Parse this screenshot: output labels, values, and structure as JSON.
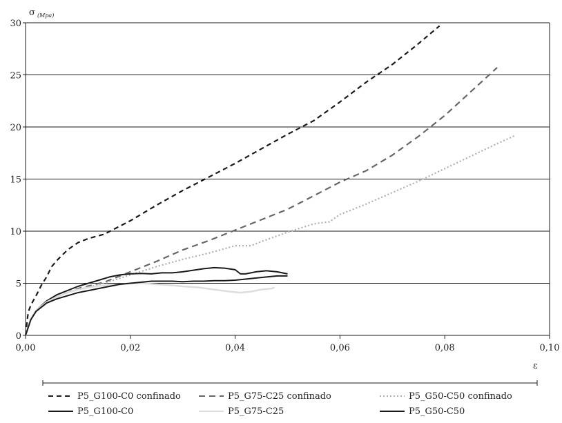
{
  "chart_data": {
    "type": "line",
    "ylabel": "σ",
    "ylabel_unit": "(Mpa)",
    "xlabel": "ε",
    "xlim": [
      0,
      0.1
    ],
    "ylim": [
      0,
      30
    ],
    "x_tick_labels": [
      "0,00",
      "0,02",
      "0,04",
      "0,06",
      "0,08",
      "0,10"
    ],
    "x_ticks": [
      0,
      0.02,
      0.04,
      0.06,
      0.08,
      0.1
    ],
    "y_ticks": [
      0,
      5,
      10,
      15,
      20,
      25,
      30
    ],
    "y_tick_labels": [
      "0",
      "5",
      "10",
      "15",
      "20",
      "25",
      "30"
    ],
    "grid": "horizontal",
    "legend_position": "bottom",
    "series": [
      {
        "name": "P5_G100-C0 confinado",
        "color": "#1a1a1a",
        "dash": "dashed",
        "x": [
          0,
          0.0005,
          0.001,
          0.002,
          0.003,
          0.004,
          0.005,
          0.006,
          0.008,
          0.01,
          0.012,
          0.015,
          0.02,
          0.025,
          0.03,
          0.035,
          0.04,
          0.045,
          0.05,
          0.055,
          0.06,
          0.065,
          0.07,
          0.075,
          0.079
        ],
        "y": [
          0,
          2.2,
          2.9,
          3.8,
          4.8,
          5.6,
          6.6,
          7.2,
          8.2,
          8.9,
          9.3,
          9.7,
          11,
          12.5,
          13.9,
          15.2,
          16.5,
          17.9,
          19.3,
          20.6,
          22.4,
          24.3,
          26,
          28,
          29.7
        ]
      },
      {
        "name": "P5_G75-C25 confinado",
        "color": "#666666",
        "dash": "dashed",
        "x": [
          0,
          0.001,
          0.002,
          0.004,
          0.006,
          0.008,
          0.01,
          0.015,
          0.02,
          0.025,
          0.03,
          0.035,
          0.04,
          0.045,
          0.05,
          0.055,
          0.06,
          0.065,
          0.07,
          0.075,
          0.08,
          0.085,
          0.09
        ],
        "y": [
          0,
          1.6,
          2.4,
          3.2,
          3.7,
          4.1,
          4.5,
          5.1,
          6.1,
          7.1,
          8.2,
          9.1,
          10.1,
          11.1,
          12.1,
          13.4,
          14.7,
          15.8,
          17.3,
          19.1,
          21.1,
          23.4,
          25.7
        ]
      },
      {
        "name": "P5_G50-C50 confinado",
        "color": "#b0b0b0",
        "dash": "dotted",
        "x": [
          0,
          0.001,
          0.002,
          0.004,
          0.006,
          0.008,
          0.01,
          0.015,
          0.02,
          0.025,
          0.03,
          0.035,
          0.04,
          0.043,
          0.045,
          0.05,
          0.055,
          0.058,
          0.06,
          0.065,
          0.07,
          0.075,
          0.08,
          0.085,
          0.09,
          0.0935
        ],
        "y": [
          0,
          1.6,
          2.4,
          3.2,
          3.7,
          4.1,
          4.4,
          5,
          5.8,
          6.6,
          7.3,
          7.9,
          8.6,
          8.6,
          9,
          9.9,
          10.7,
          10.9,
          11.6,
          12.6,
          13.7,
          14.8,
          16,
          17.2,
          18.4,
          19.2
        ]
      },
      {
        "name": "P5_G100-C0",
        "color": "#1a1a1a",
        "dash": "solid",
        "x": [
          0,
          0.001,
          0.002,
          0.004,
          0.006,
          0.008,
          0.01,
          0.012,
          0.014,
          0.016,
          0.018,
          0.02,
          0.022,
          0.024,
          0.026,
          0.028,
          0.03,
          0.032,
          0.034,
          0.036,
          0.038,
          0.04,
          0.041,
          0.042,
          0.044,
          0.046,
          0.048,
          0.05
        ],
        "y": [
          0,
          1.6,
          2.4,
          3.3,
          3.9,
          4.3,
          4.7,
          5,
          5.3,
          5.6,
          5.8,
          5.9,
          5.95,
          5.9,
          6.0,
          6.0,
          6.1,
          6.25,
          6.4,
          6.5,
          6.45,
          6.3,
          5.9,
          5.9,
          6.1,
          6.2,
          6.1,
          5.9
        ]
      },
      {
        "name": "P5_G75-C25",
        "color": "#dddddd",
        "dash": "solid",
        "x": [
          0,
          0.001,
          0.002,
          0.004,
          0.006,
          0.008,
          0.01,
          0.012,
          0.015,
          0.018,
          0.02,
          0.022,
          0.025,
          0.028,
          0.03,
          0.033,
          0.036,
          0.039,
          0.041,
          0.043,
          0.045,
          0.047,
          0.0475
        ],
        "y": [
          0,
          1.6,
          2.4,
          3.2,
          3.7,
          4.1,
          4.4,
          4.6,
          4.8,
          4.9,
          5,
          5,
          4.9,
          4.8,
          4.7,
          4.6,
          4.4,
          4.2,
          4.1,
          4.2,
          4.4,
          4.5,
          4.6
        ]
      },
      {
        "name": "P5_G50-C50",
        "color": "#1a1a1a",
        "dash": "solid",
        "x": [
          0,
          0.001,
          0.002,
          0.004,
          0.006,
          0.008,
          0.01,
          0.012,
          0.015,
          0.018,
          0.02,
          0.022,
          0.024,
          0.026,
          0.028,
          0.03,
          0.032,
          0.034,
          0.036,
          0.038,
          0.04,
          0.042,
          0.044,
          0.046,
          0.048,
          0.05
        ],
        "y": [
          0,
          1.5,
          2.3,
          3.1,
          3.5,
          3.8,
          4.1,
          4.3,
          4.6,
          4.9,
          5,
          5.1,
          5.2,
          5.2,
          5.2,
          5.15,
          5.2,
          5.2,
          5.25,
          5.25,
          5.3,
          5.4,
          5.5,
          5.6,
          5.7,
          5.7
        ]
      }
    ]
  }
}
